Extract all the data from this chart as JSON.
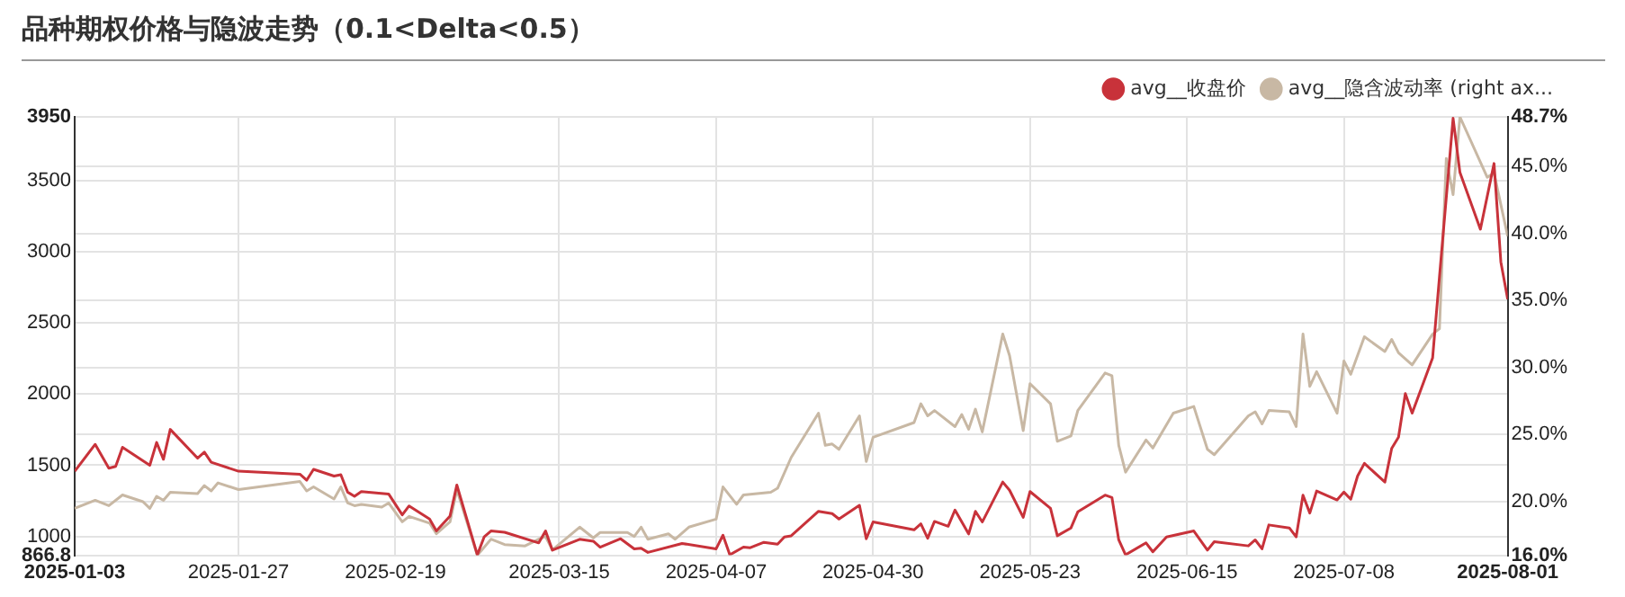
{
  "chart_data": {
    "type": "line",
    "title": "品种期权价格与隐波走势（0.1<Delta<0.5）",
    "xlim": [
      "2025-01-03",
      "2025-08-01"
    ],
    "xticks": [
      "2025-01-03",
      "2025-01-27",
      "2025-02-19",
      "2025-03-15",
      "2025-04-07",
      "2025-04-30",
      "2025-05-23",
      "2025-06-15",
      "2025-07-08",
      "2025-08-01"
    ],
    "ylim": [
      866.8,
      3950
    ],
    "yticks": [
      866.8,
      1000,
      1500,
      2000,
      2500,
      3000,
      3500,
      3950
    ],
    "y2lim": [
      16.0,
      48.7
    ],
    "y2ticks": [
      {
        "value": 16.0,
        "label": "16.0%"
      },
      {
        "value": 20.0,
        "label": "20.0%"
      },
      {
        "value": 25.0,
        "label": "25.0%"
      },
      {
        "value": 30.0,
        "label": "30.0%"
      },
      {
        "value": 35.0,
        "label": "35.0%"
      },
      {
        "value": 40.0,
        "label": "40.0%"
      },
      {
        "value": 45.0,
        "label": "45.0%"
      },
      {
        "value": 48.7,
        "label": "48.7%"
      }
    ],
    "grid": true,
    "legend": "top right",
    "marker": "none",
    "line_style": "solid",
    "series": [
      {
        "name": "avg__收盘价",
        "color": "#c8323a",
        "x": [
          "2025-01-03",
          "2025-01-06",
          "2025-01-08",
          "2025-01-09",
          "2025-01-10",
          "2025-01-14",
          "2025-01-15",
          "2025-01-16",
          "2025-01-17",
          "2025-01-21",
          "2025-01-22",
          "2025-01-23",
          "2025-01-27",
          "2025-02-05",
          "2025-02-06",
          "2025-02-07",
          "2025-02-10",
          "2025-02-11",
          "2025-02-12",
          "2025-02-13",
          "2025-02-14",
          "2025-02-18",
          "2025-02-20",
          "2025-02-21",
          "2025-02-24",
          "2025-02-25",
          "2025-02-27",
          "2025-02-28",
          "2025-03-03",
          "2025-03-04",
          "2025-03-05",
          "2025-03-07",
          "2025-03-12",
          "2025-03-13",
          "2025-03-14",
          "2025-03-18",
          "2025-03-20",
          "2025-03-21",
          "2025-03-24",
          "2025-03-26",
          "2025-03-27",
          "2025-03-28",
          "2025-04-02",
          "2025-04-07",
          "2025-04-08",
          "2025-04-09",
          "2025-04-11",
          "2025-04-12",
          "2025-04-14",
          "2025-04-16",
          "2025-04-17",
          "2025-04-18",
          "2025-04-22",
          "2025-04-24",
          "2025-04-25",
          "2025-04-28",
          "2025-04-29",
          "2025-04-30",
          "2025-05-06",
          "2025-05-07",
          "2025-05-08",
          "2025-05-09",
          "2025-05-11",
          "2025-05-12",
          "2025-05-14",
          "2025-05-15",
          "2025-05-16",
          "2025-05-19",
          "2025-05-20",
          "2025-05-22",
          "2025-05-23",
          "2025-05-26",
          "2025-05-27",
          "2025-05-29",
          "2025-05-30",
          "2025-06-03",
          "2025-06-04",
          "2025-06-05",
          "2025-06-06",
          "2025-06-09",
          "2025-06-10",
          "2025-06-12",
          "2025-06-16",
          "2025-06-18",
          "2025-06-19",
          "2025-06-24",
          "2025-06-25",
          "2025-06-26",
          "2025-06-27",
          "2025-06-30",
          "2025-07-01",
          "2025-07-02",
          "2025-07-03",
          "2025-07-04",
          "2025-07-07",
          "2025-07-08",
          "2025-07-09",
          "2025-07-10",
          "2025-07-11",
          "2025-07-14",
          "2025-07-15",
          "2025-07-16",
          "2025-07-17",
          "2025-07-18",
          "2025-07-21",
          "2025-07-22",
          "2025-07-24",
          "2025-07-25",
          "2025-07-28",
          "2025-07-30",
          "2025-07-31",
          "2025-08-01"
        ],
        "values": [
          1458,
          1647,
          1479,
          1492,
          1626,
          1500,
          1660,
          1542,
          1752,
          1550,
          1592,
          1521,
          1458,
          1437,
          1395,
          1471,
          1424,
          1433,
          1311,
          1282,
          1315,
          1298,
          1151,
          1214,
          1122,
          1038,
          1143,
          1361,
          870,
          996,
          1038,
          1029,
          954,
          1038,
          903,
          979,
          966,
          924,
          983,
          912,
          916,
          887,
          950,
          912,
          1008,
          870,
          924,
          920,
          958,
          945,
          996,
          1004,
          1176,
          1160,
          1122,
          1218,
          983,
          1101,
          1046,
          1088,
          987,
          1105,
          1071,
          1185,
          1017,
          1176,
          1101,
          1382,
          1324,
          1134,
          1315,
          1197,
          1004,
          1059,
          1172,
          1290,
          1273,
          975,
          870,
          954,
          891,
          996,
          1038,
          903,
          962,
          933,
          975,
          912,
          1080,
          1059,
          996,
          1290,
          1164,
          1319,
          1256,
          1311,
          1261,
          1424,
          1513,
          1382,
          1618,
          1698,
          2004,
          1866,
          2256,
          2824,
          3940,
          3559,
          3160,
          3622,
          2929,
          2668
        ]
      },
      {
        "name": "avg__隐含波动率 (right ax...",
        "color": "#c8b8a4",
        "axis": "y2",
        "x": [
          "2025-01-03",
          "2025-01-06",
          "2025-01-08",
          "2025-01-10",
          "2025-01-13",
          "2025-01-14",
          "2025-01-15",
          "2025-01-16",
          "2025-01-17",
          "2025-01-21",
          "2025-01-22",
          "2025-01-23",
          "2025-01-24",
          "2025-01-27",
          "2025-02-05",
          "2025-02-06",
          "2025-02-07",
          "2025-02-10",
          "2025-02-11",
          "2025-02-12",
          "2025-02-13",
          "2025-02-14",
          "2025-02-17",
          "2025-02-18",
          "2025-02-20",
          "2025-02-21",
          "2025-02-24",
          "2025-02-25",
          "2025-02-27",
          "2025-02-28",
          "2025-03-03",
          "2025-03-05",
          "2025-03-07",
          "2025-03-10",
          "2025-03-12",
          "2025-03-13",
          "2025-03-14",
          "2025-03-18",
          "2025-03-20",
          "2025-03-21",
          "2025-03-25",
          "2025-03-26",
          "2025-03-27",
          "2025-03-28",
          "2025-03-31",
          "2025-04-01",
          "2025-04-03",
          "2025-04-07",
          "2025-04-08",
          "2025-04-10",
          "2025-04-11",
          "2025-04-15",
          "2025-04-16",
          "2025-04-18",
          "2025-04-22",
          "2025-04-23",
          "2025-04-24",
          "2025-04-25",
          "2025-04-28",
          "2025-04-29",
          "2025-04-30",
          "2025-05-06",
          "2025-05-07",
          "2025-05-08",
          "2025-05-09",
          "2025-05-12",
          "2025-05-13",
          "2025-05-14",
          "2025-05-15",
          "2025-05-16",
          "2025-05-19",
          "2025-05-20",
          "2025-05-22",
          "2025-05-23",
          "2025-05-26",
          "2025-05-27",
          "2025-05-29",
          "2025-05-30",
          "2025-06-03",
          "2025-06-04",
          "2025-06-05",
          "2025-06-06",
          "2025-06-09",
          "2025-06-10",
          "2025-06-13",
          "2025-06-16",
          "2025-06-18",
          "2025-06-19",
          "2025-06-24",
          "2025-06-25",
          "2025-06-26",
          "2025-06-27",
          "2025-06-30",
          "2025-07-01",
          "2025-07-02",
          "2025-07-03",
          "2025-07-04",
          "2025-07-07",
          "2025-07-08",
          "2025-07-09",
          "2025-07-11",
          "2025-07-14",
          "2025-07-15",
          "2025-07-16",
          "2025-07-18",
          "2025-07-21",
          "2025-07-22",
          "2025-07-23",
          "2025-07-24",
          "2025-07-25",
          "2025-07-29",
          "2025-07-30",
          "2025-08-01"
        ],
        "values": [
          19.5,
          20.1,
          19.7,
          20.5,
          20.0,
          19.5,
          20.4,
          20.1,
          20.7,
          20.6,
          21.2,
          20.8,
          21.4,
          20.9,
          21.5,
          20.8,
          21.1,
          20.2,
          21.1,
          19.9,
          19.7,
          19.8,
          19.6,
          19.9,
          18.5,
          18.9,
          18.4,
          17.6,
          18.5,
          20.9,
          16.0,
          17.2,
          16.8,
          16.7,
          17.2,
          17.4,
          16.4,
          18.1,
          17.3,
          17.7,
          17.7,
          17.4,
          18.1,
          17.2,
          17.6,
          17.2,
          18.1,
          18.7,
          21.1,
          19.8,
          20.5,
          20.7,
          21.0,
          23.3,
          26.6,
          24.2,
          24.3,
          23.9,
          26.4,
          23.0,
          24.8,
          25.9,
          27.3,
          26.4,
          26.8,
          25.6,
          26.5,
          25.4,
          26.9,
          25.2,
          32.5,
          30.9,
          25.3,
          28.8,
          27.3,
          24.5,
          24.9,
          26.8,
          29.6,
          29.4,
          24.2,
          22.2,
          24.6,
          24.0,
          26.6,
          27.1,
          23.9,
          23.5,
          26.4,
          26.7,
          25.8,
          26.8,
          26.7,
          25.6,
          32.5,
          28.6,
          29.7,
          26.6,
          30.5,
          29.5,
          32.3,
          31.2,
          32.1,
          31.1,
          30.2,
          32.5,
          32.9,
          45.6,
          42.9,
          48.7,
          44.2,
          44.5,
          39.8
        ]
      }
    ]
  }
}
